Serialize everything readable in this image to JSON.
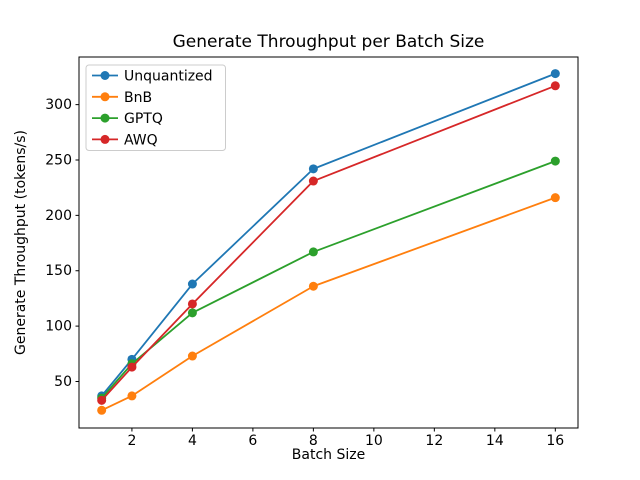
{
  "figure": {
    "background": "#ffffff"
  },
  "chart_data": {
    "type": "line",
    "title": "Generate Throughput per Batch Size",
    "xlabel": "Batch Size",
    "ylabel": "Generate Throughput (tokens/s)",
    "x": [
      1,
      2,
      4,
      8,
      16
    ],
    "series": [
      {
        "name": "Unquantized",
        "color": "#1f77b4",
        "values": [
          37,
          70,
          138,
          242,
          328
        ]
      },
      {
        "name": "BnB",
        "color": "#ff7f0e",
        "values": [
          24,
          37,
          73,
          136,
          216
        ]
      },
      {
        "name": "GPTQ",
        "color": "#2ca02c",
        "values": [
          35,
          66,
          112,
          167,
          249
        ]
      },
      {
        "name": "AWQ",
        "color": "#d62728",
        "values": [
          33,
          63,
          120,
          231,
          317
        ]
      }
    ],
    "xticks": [
      2,
      4,
      6,
      8,
      10,
      12,
      14,
      16
    ],
    "yticks": [
      50,
      100,
      150,
      200,
      250,
      300
    ],
    "xlim": [
      0.25,
      16.75
    ],
    "ylim": [
      8,
      343
    ],
    "grid": false,
    "marker": "circle",
    "legend": {
      "position": "upper-left",
      "background": "#ffffff",
      "border_color": "#cccccc"
    },
    "axis_color": "#000000"
  }
}
